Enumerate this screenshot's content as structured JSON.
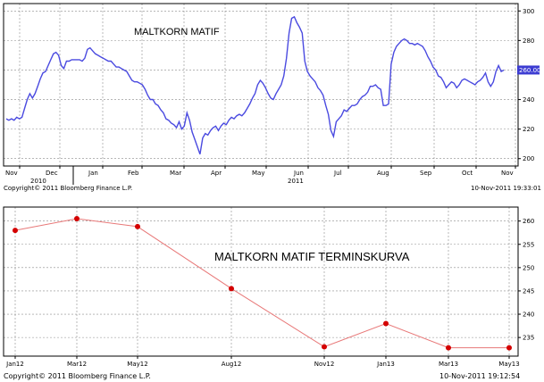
{
  "colors": {
    "line1": "#4a4ae0",
    "line2": "#e87878",
    "marker2": "#d40000",
    "last_price_bg": "#3c3cd2"
  },
  "chart_data": [
    {
      "type": "line",
      "title": "MALTKORN MATIF",
      "x_labels": [
        "Nov",
        "Dec",
        "Jan",
        "Feb",
        "Mar",
        "Apr",
        "May",
        "Jun",
        "Jul",
        "Aug",
        "Sep",
        "Oct",
        "Nov"
      ],
      "year_labels": [
        "2010",
        "2011"
      ],
      "y_ticks": [
        200,
        220,
        240,
        260,
        280,
        300
      ],
      "ylim": [
        195,
        305
      ],
      "last_price": "260.00",
      "footer_left": "Copyright© 2011 Bloomberg Finance L.P.",
      "footer_right": "10-Nov-2011 19:33:01",
      "series": [
        {
          "values": [
            [
              0,
              227
            ],
            [
              0.2,
              226
            ],
            [
              0.4,
              227
            ],
            [
              0.6,
              226
            ],
            [
              0.8,
              228
            ],
            [
              1.0,
              227
            ],
            [
              1.2,
              228
            ],
            [
              1.4,
              234
            ],
            [
              1.6,
              240
            ],
            [
              1.8,
              244
            ],
            [
              2.0,
              241
            ],
            [
              2.2,
              244
            ],
            [
              2.4,
              249
            ],
            [
              2.6,
              254
            ],
            [
              2.8,
              258
            ],
            [
              3.0,
              259
            ],
            [
              3.2,
              263
            ],
            [
              3.4,
              267
            ],
            [
              3.6,
              271
            ],
            [
              3.8,
              272
            ],
            [
              4.0,
              270
            ],
            [
              4.2,
              263
            ],
            [
              4.4,
              261
            ],
            [
              4.6,
              266
            ],
            [
              4.8,
              266
            ],
            [
              5.0,
              267
            ],
            [
              5.2,
              267
            ],
            [
              5.4,
              267
            ],
            [
              5.6,
              267
            ],
            [
              5.8,
              266
            ],
            [
              6.0,
              268
            ],
            [
              6.2,
              274
            ],
            [
              6.4,
              275
            ],
            [
              6.6,
              273
            ],
            [
              6.8,
              271
            ],
            [
              7.0,
              270
            ],
            [
              7.2,
              269
            ],
            [
              7.4,
              268
            ],
            [
              7.6,
              267
            ],
            [
              7.8,
              266
            ],
            [
              8.0,
              266
            ],
            [
              8.2,
              264
            ],
            [
              8.4,
              262
            ],
            [
              8.6,
              262
            ],
            [
              8.8,
              261
            ],
            [
              9.0,
              260
            ],
            [
              9.2,
              259
            ],
            [
              9.4,
              256
            ],
            [
              9.6,
              253
            ],
            [
              9.8,
              252
            ],
            [
              10.0,
              252
            ],
            [
              10.2,
              251
            ],
            [
              10.4,
              250
            ],
            [
              10.6,
              247
            ],
            [
              10.8,
              243
            ],
            [
              11.0,
              240
            ],
            [
              11.2,
              240
            ],
            [
              11.4,
              237
            ],
            [
              11.6,
              236
            ],
            [
              11.8,
              233
            ],
            [
              12.0,
              231
            ],
            [
              12.2,
              227
            ],
            [
              12.4,
              226
            ],
            [
              12.6,
              224
            ],
            [
              12.8,
              223
            ],
            [
              13.0,
              221
            ],
            [
              13.2,
              225
            ],
            [
              13.4,
              220
            ],
            [
              13.6,
              222
            ],
            [
              13.8,
              231
            ],
            [
              14.0,
              226
            ],
            [
              14.2,
              218
            ],
            [
              14.4,
              213
            ],
            [
              14.6,
              208
            ],
            [
              14.8,
              203
            ],
            [
              15.0,
              214
            ],
            [
              15.2,
              217
            ],
            [
              15.4,
              216
            ],
            [
              15.6,
              219
            ],
            [
              15.8,
              221
            ],
            [
              16.0,
              222
            ],
            [
              16.2,
              219
            ],
            [
              16.4,
              222
            ],
            [
              16.6,
              224
            ],
            [
              16.8,
              223
            ],
            [
              17.0,
              226
            ],
            [
              17.2,
              228
            ],
            [
              17.4,
              227
            ],
            [
              17.6,
              229
            ],
            [
              17.8,
              230
            ],
            [
              18.0,
              229
            ],
            [
              18.2,
              231
            ],
            [
              18.4,
              234
            ],
            [
              18.6,
              237
            ],
            [
              18.8,
              241
            ],
            [
              19.0,
              244
            ],
            [
              19.2,
              250
            ],
            [
              19.4,
              253
            ],
            [
              19.6,
              251
            ],
            [
              19.8,
              248
            ],
            [
              20.0,
              244
            ],
            [
              20.2,
              241
            ],
            [
              20.4,
              240
            ],
            [
              20.6,
              244
            ],
            [
              20.8,
              247
            ],
            [
              21.0,
              250
            ],
            [
              21.2,
              256
            ],
            [
              21.4,
              268
            ],
            [
              21.6,
              285
            ],
            [
              21.8,
              295
            ],
            [
              22.0,
              296
            ],
            [
              22.2,
              292
            ],
            [
              22.4,
              289
            ],
            [
              22.6,
              285
            ],
            [
              22.8,
              266
            ],
            [
              23.0,
              259
            ],
            [
              23.2,
              256
            ],
            [
              23.4,
              254
            ],
            [
              23.6,
              252
            ],
            [
              23.8,
              248
            ],
            [
              24.0,
              246
            ],
            [
              24.2,
              243
            ],
            [
              24.4,
              236
            ],
            [
              24.6,
              230
            ],
            [
              24.8,
              219
            ],
            [
              25.0,
              215
            ],
            [
              25.2,
              225
            ],
            [
              25.4,
              227
            ],
            [
              25.6,
              229
            ],
            [
              25.8,
              233
            ],
            [
              26.0,
              232
            ],
            [
              26.2,
              234
            ],
            [
              26.4,
              236
            ],
            [
              26.6,
              236
            ],
            [
              26.8,
              237
            ],
            [
              27.0,
              240
            ],
            [
              27.2,
              242
            ],
            [
              27.4,
              243
            ],
            [
              27.6,
              245
            ],
            [
              27.8,
              249
            ],
            [
              28.0,
              249
            ],
            [
              28.2,
              250
            ],
            [
              28.4,
              248
            ],
            [
              28.6,
              247
            ],
            [
              28.8,
              236
            ],
            [
              29.0,
              236
            ],
            [
              29.2,
              237
            ],
            [
              29.4,
              264
            ],
            [
              29.6,
              272
            ],
            [
              29.8,
              276
            ],
            [
              30.0,
              278
            ],
            [
              30.2,
              280
            ],
            [
              30.4,
              281
            ],
            [
              30.6,
              280
            ],
            [
              30.8,
              278
            ],
            [
              31.0,
              278
            ],
            [
              31.2,
              277
            ],
            [
              31.4,
              278
            ],
            [
              31.6,
              277
            ],
            [
              31.8,
              276
            ],
            [
              32.0,
              273
            ],
            [
              32.2,
              269
            ],
            [
              32.4,
              266
            ],
            [
              32.6,
              262
            ],
            [
              32.8,
              260
            ],
            [
              33.0,
              256
            ],
            [
              33.2,
              255
            ],
            [
              33.4,
              252
            ],
            [
              33.6,
              248
            ],
            [
              33.8,
              250
            ],
            [
              34.0,
              252
            ],
            [
              34.2,
              251
            ],
            [
              34.4,
              248
            ],
            [
              34.6,
              250
            ],
            [
              34.8,
              253
            ],
            [
              35.0,
              254
            ],
            [
              35.2,
              253
            ],
            [
              35.4,
              252
            ],
            [
              35.6,
              251
            ],
            [
              35.8,
              250
            ],
            [
              36.0,
              252
            ],
            [
              36.2,
              253
            ],
            [
              36.4,
              255
            ],
            [
              36.6,
              258
            ],
            [
              36.8,
              252
            ],
            [
              37.0,
              249
            ],
            [
              37.2,
              252
            ],
            [
              37.4,
              259
            ],
            [
              37.6,
              263
            ],
            [
              37.8,
              259
            ],
            [
              38.0,
              260
            ]
          ]
        }
      ]
    },
    {
      "type": "line",
      "title": "MALTKORN MATIF TERMINSKURVA",
      "categories": [
        "Jan12",
        "Mar12",
        "May12",
        "Aug12",
        "Nov12",
        "Jan13",
        "Mar13",
        "May13"
      ],
      "y_ticks": [
        235,
        240,
        245,
        250,
        255,
        260
      ],
      "ylim": [
        231,
        263
      ],
      "footer_left": "Copyright© 2011 Bloomberg Finance L.P.",
      "footer_right": "10-Nov-2011 19:12:54",
      "series": [
        {
          "values": [
            258,
            260.5,
            258.8,
            245.5,
            233,
            238,
            232.8,
            232.8
          ]
        }
      ]
    }
  ]
}
